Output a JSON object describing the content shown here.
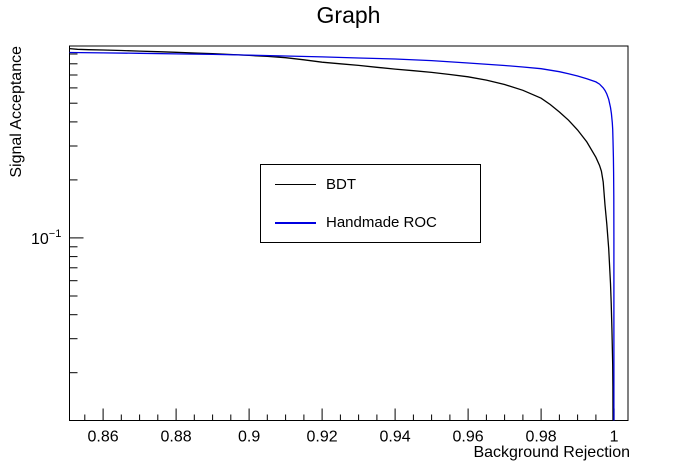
{
  "chart_data": {
    "type": "line",
    "title": "Graph",
    "xlabel": "Background Rejection",
    "ylabel": "Signal Acceptance",
    "xscale": "linear",
    "yscale": "log",
    "xlim": [
      0.8508,
      1.0038
    ],
    "ylim": [
      0.0113,
      0.99
    ],
    "grid": false,
    "background_color": "#ffffff",
    "frame_color": "#000000",
    "legend_position": "center",
    "x_ticks": {
      "major": [
        0.86,
        0.88,
        0.9,
        0.92,
        0.94,
        0.96,
        0.98,
        1.0
      ],
      "labels": [
        "0.86",
        "0.88",
        "0.9",
        "0.92",
        "0.94",
        "0.96",
        "0.98",
        "1"
      ],
      "minor_step": 0.005
    },
    "y_ticks": {
      "major": [
        0.1
      ],
      "major_label": {
        "base": "10",
        "exponent": "−1"
      },
      "minor": [
        0.9,
        0.8,
        0.7,
        0.6,
        0.5,
        0.4,
        0.3,
        0.2,
        0.09,
        0.08,
        0.07,
        0.06,
        0.05,
        0.04,
        0.03,
        0.02
      ]
    },
    "series": [
      {
        "name": "BDT",
        "color": "#000000",
        "points": [
          [
            0.8508,
            0.96
          ],
          [
            0.853,
            0.952
          ],
          [
            0.856,
            0.947
          ],
          [
            0.86,
            0.944
          ],
          [
            0.865,
            0.938
          ],
          [
            0.87,
            0.932
          ],
          [
            0.875,
            0.925
          ],
          [
            0.88,
            0.918
          ],
          [
            0.885,
            0.911
          ],
          [
            0.89,
            0.903
          ],
          [
            0.895,
            0.894
          ],
          [
            0.9,
            0.885
          ],
          [
            0.905,
            0.874
          ],
          [
            0.91,
            0.861
          ],
          [
            0.915,
            0.84
          ],
          [
            0.92,
            0.816
          ],
          [
            0.925,
            0.8
          ],
          [
            0.93,
            0.785
          ],
          [
            0.935,
            0.768
          ],
          [
            0.94,
            0.751
          ],
          [
            0.945,
            0.737
          ],
          [
            0.95,
            0.722
          ],
          [
            0.955,
            0.704
          ],
          [
            0.96,
            0.685
          ],
          [
            0.965,
            0.659
          ],
          [
            0.97,
            0.625
          ],
          [
            0.975,
            0.583
          ],
          [
            0.98,
            0.531
          ],
          [
            0.9825,
            0.492
          ],
          [
            0.985,
            0.45
          ],
          [
            0.9875,
            0.408
          ],
          [
            0.99,
            0.363
          ],
          [
            0.9925,
            0.315
          ],
          [
            0.995,
            0.262
          ],
          [
            0.996,
            0.238
          ],
          [
            0.9965,
            0.222
          ],
          [
            0.997,
            0.195
          ],
          [
            0.9975,
            0.148
          ],
          [
            0.998,
            0.118
          ],
          [
            0.9985,
            0.088
          ],
          [
            0.999,
            0.058
          ],
          [
            0.9992,
            0.046
          ],
          [
            0.9994,
            0.034
          ],
          [
            0.9996,
            0.022
          ],
          [
            0.99965,
            0.017
          ],
          [
            0.9997,
            0.0113
          ]
        ]
      },
      {
        "name": "Handmade ROC",
        "color": "#0000e0",
        "points": [
          [
            0.8508,
            0.916
          ],
          [
            0.86,
            0.912
          ],
          [
            0.87,
            0.907
          ],
          [
            0.88,
            0.901
          ],
          [
            0.89,
            0.895
          ],
          [
            0.9,
            0.888
          ],
          [
            0.91,
            0.879
          ],
          [
            0.92,
            0.869
          ],
          [
            0.93,
            0.858
          ],
          [
            0.94,
            0.848
          ],
          [
            0.95,
            0.832
          ],
          [
            0.96,
            0.808
          ],
          [
            0.97,
            0.784
          ],
          [
            0.975,
            0.77
          ],
          [
            0.98,
            0.755
          ],
          [
            0.985,
            0.728
          ],
          [
            0.9875,
            0.71
          ],
          [
            0.99,
            0.692
          ],
          [
            0.9925,
            0.67
          ],
          [
            0.995,
            0.645
          ],
          [
            0.996,
            0.628
          ],
          [
            0.997,
            0.6
          ],
          [
            0.9975,
            0.582
          ],
          [
            0.998,
            0.558
          ],
          [
            0.9985,
            0.524
          ],
          [
            0.999,
            0.475
          ],
          [
            0.99925,
            0.442
          ],
          [
            0.9995,
            0.396
          ],
          [
            0.9996,
            0.366
          ],
          [
            0.9997,
            0.321
          ],
          [
            0.9998,
            0.262
          ],
          [
            0.99985,
            0.22
          ],
          [
            0.9999,
            0.165
          ],
          [
            0.99995,
            0.1
          ],
          [
            0.99995,
            0.0113
          ]
        ]
      }
    ]
  }
}
